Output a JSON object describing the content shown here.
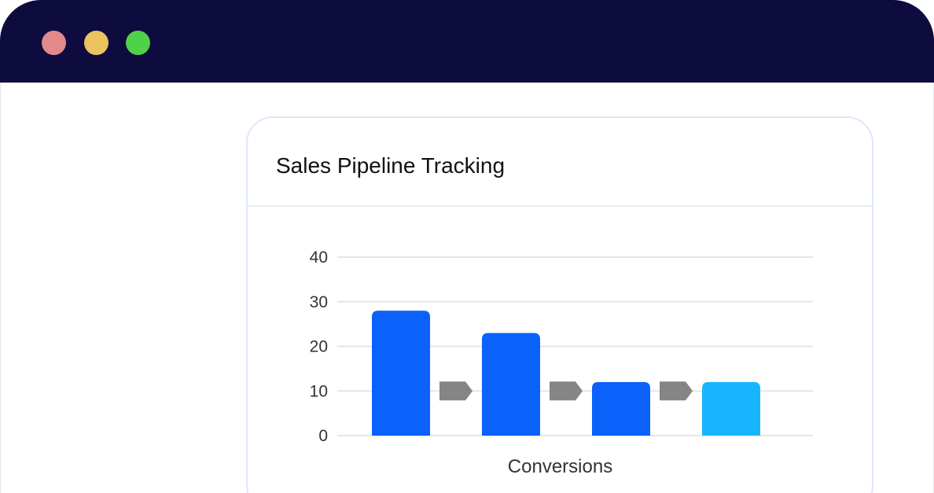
{
  "window": {
    "controls": [
      {
        "name": "close",
        "color": "#e28a8a"
      },
      {
        "name": "minimize",
        "color": "#ebc35f"
      },
      {
        "name": "maximize",
        "color": "#4fd14a"
      }
    ]
  },
  "card": {
    "title": "Sales Pipeline Tracking"
  },
  "colors": {
    "titlebar": "#0e0b3f",
    "bar_primary": "#0a62fb",
    "bar_last": "#19b4fe",
    "arrow": "#858585",
    "grid": "#e3e5e8"
  },
  "chart_data": {
    "type": "bar",
    "title": "Sales Pipeline Tracking",
    "xlabel": "Conversions",
    "ylabel": "",
    "categories": [
      "",
      "",
      "",
      ""
    ],
    "values": [
      28,
      23,
      12,
      12
    ],
    "ylim": [
      0,
      40
    ],
    "yticks": [
      0,
      10,
      20,
      30,
      40
    ],
    "grid": true,
    "legend": "none",
    "bar_colors": [
      "#0a62fb",
      "#0a62fb",
      "#0a62fb",
      "#19b4fe"
    ],
    "connectors": "arrows between consecutive bars"
  }
}
